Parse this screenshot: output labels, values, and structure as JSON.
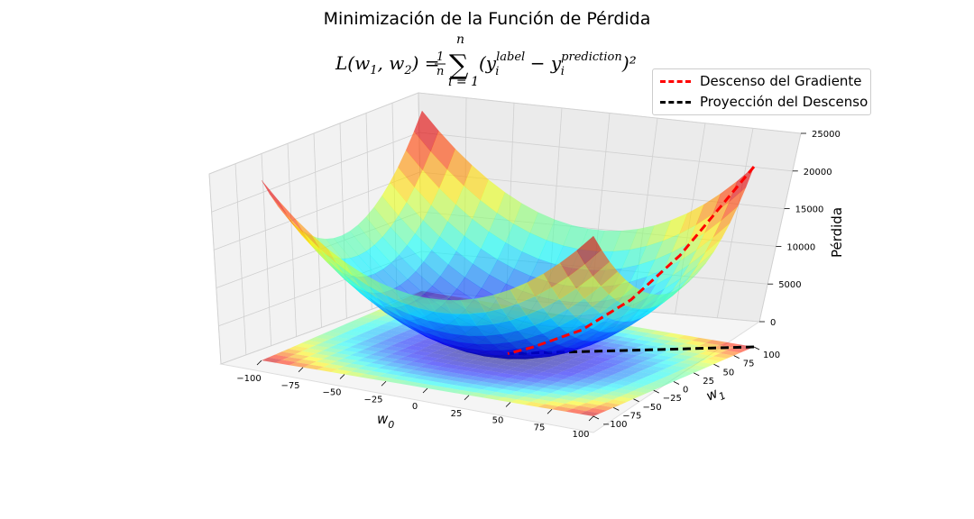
{
  "chart_data": {
    "type": "surface3d",
    "title": "Minimización de la Función de Pérdida",
    "subtitle": {
      "lhs": "L(w",
      "sub1": "1",
      "mid1": ", w",
      "sub2": "2",
      "mid2": ") = ",
      "frac_num": "1",
      "frac_den": "n",
      "sum_top": "n",
      "sum_bottom": "i = 1",
      "sum_symbol": "∑",
      "term1": "(y",
      "sup1": "label",
      "isub1": "i",
      "minus": " − y",
      "sup2": "prediction",
      "isub2": "i",
      "close": ")²"
    },
    "xlabel": "w",
    "xlabel_sub": "0",
    "ylabel": "w",
    "ylabel_sub": "1",
    "zlabel": "Pérdida",
    "xlim": [
      -100,
      100
    ],
    "ylim": [
      -100,
      100
    ],
    "zlim": [
      0,
      25000
    ],
    "xticks": [
      "−100",
      "−75",
      "−50",
      "−25",
      "0",
      "25",
      "50",
      "75",
      "100"
    ],
    "yticks": [
      "−100",
      "−75",
      "−50",
      "−25",
      "0",
      "25",
      "50",
      "75",
      "100"
    ],
    "zticks": [
      "0",
      "5000",
      "10000",
      "15000",
      "20000",
      "25000"
    ],
    "colormap": "jet",
    "grid": true,
    "legend_position": "top-right",
    "series": [
      {
        "name": "Descenso del Gradiente",
        "color": "#ff0000",
        "style": "dashed",
        "points": [
          [
            100,
            100,
            25000
          ],
          [
            85,
            85,
            19000
          ],
          [
            70,
            70,
            13000
          ],
          [
            50,
            50,
            7000
          ],
          [
            30,
            30,
            3000
          ],
          [
            10,
            10,
            800
          ],
          [
            0,
            0,
            0
          ]
        ]
      },
      {
        "name": "Proyección del Descenso",
        "color": "#000000",
        "style": "dashed",
        "points": [
          [
            100,
            100,
            0
          ],
          [
            75,
            75,
            0
          ],
          [
            50,
            50,
            0
          ],
          [
            25,
            25,
            0
          ],
          [
            0,
            0,
            0
          ]
        ]
      }
    ]
  }
}
